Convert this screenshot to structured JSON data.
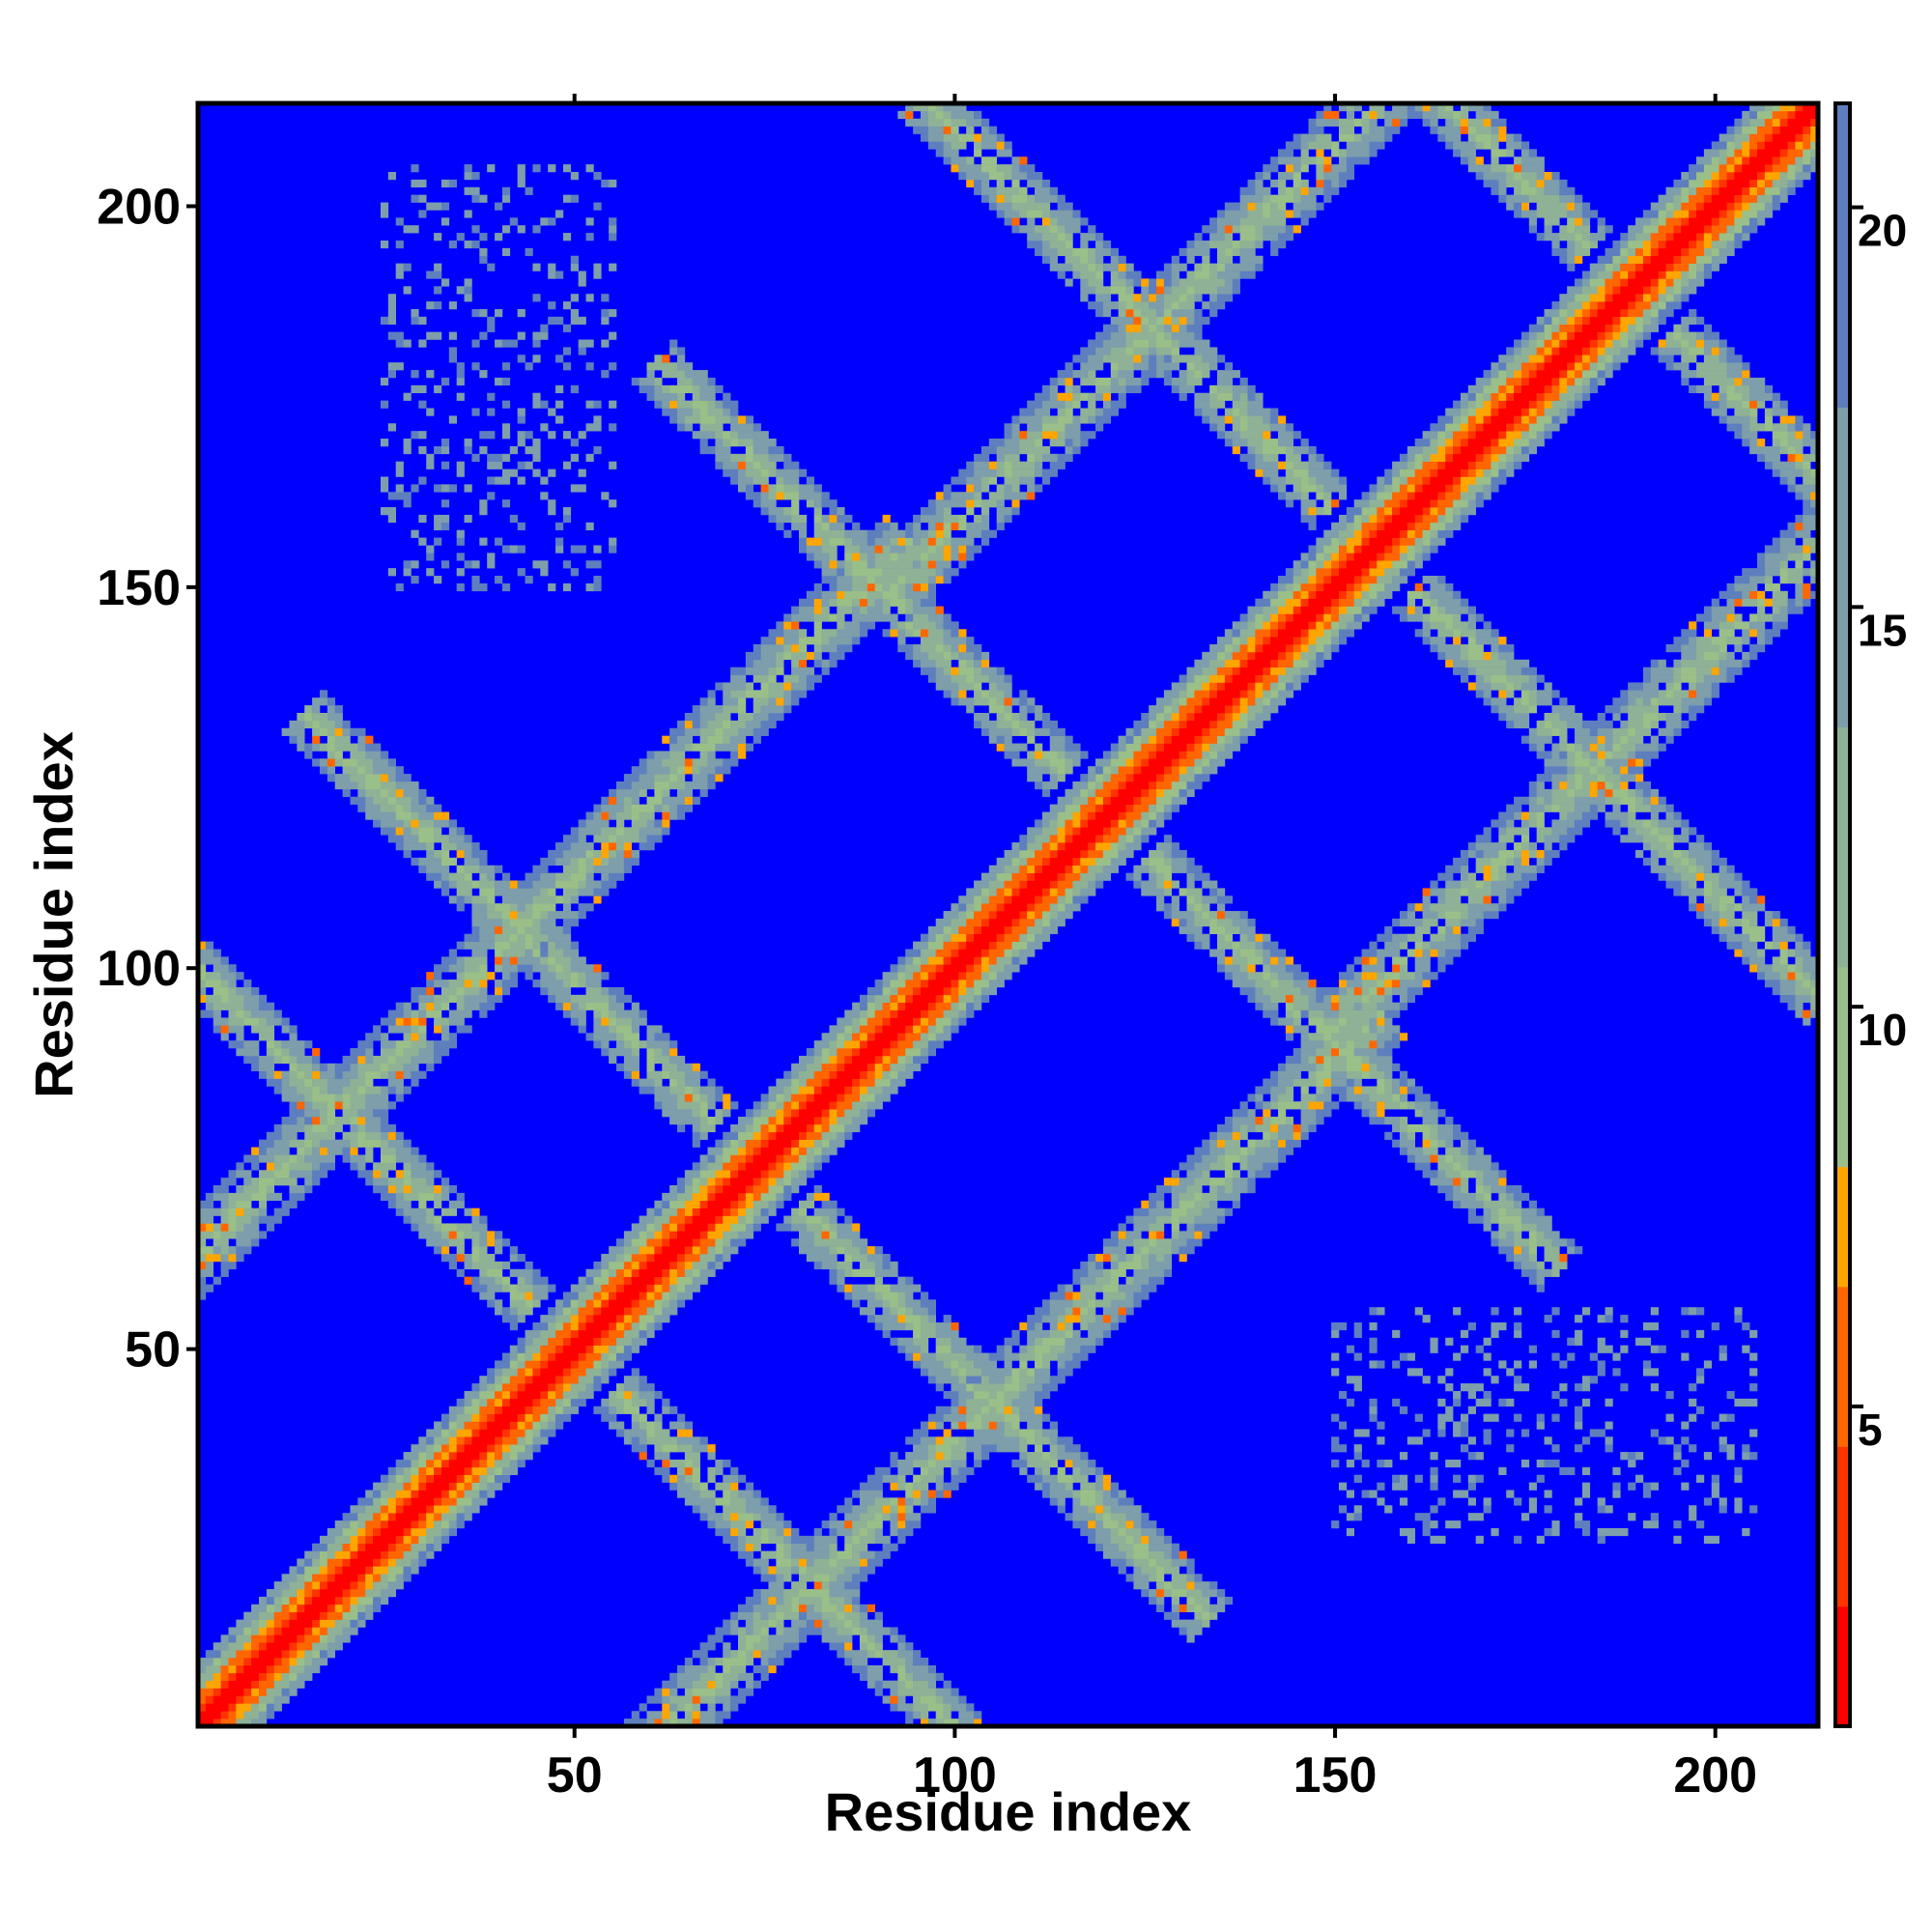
{
  "chart_data": {
    "type": "heatmap",
    "title": "",
    "xlabel": "Residue index",
    "ylabel": "Residue index",
    "n_residues": 213,
    "xlim": [
      1,
      213
    ],
    "ylim": [
      1,
      213
    ],
    "x_ticks": [
      50,
      100,
      150,
      200
    ],
    "y_ticks": [
      50,
      100,
      150,
      200
    ],
    "colorbar": {
      "range": [
        1,
        21.3
      ],
      "ticks": [
        5,
        10,
        15,
        20
      ],
      "colors": [
        {
          "from": 1,
          "to": 2.5,
          "color": "#ff0000"
        },
        {
          "from": 2.5,
          "to": 4.5,
          "color": "#ff3300"
        },
        {
          "from": 4.5,
          "to": 6.5,
          "color": "#ff6600"
        },
        {
          "from": 6.5,
          "to": 8.0,
          "color": "#ffa500"
        },
        {
          "from": 8.0,
          "to": 10.5,
          "color": "#9bbf88"
        },
        {
          "from": 10.5,
          "to": 13.5,
          "color": "#8fb196"
        },
        {
          "from": 13.5,
          "to": 17.5,
          "color": "#7d9eaa"
        },
        {
          "from": 17.5,
          "to": 21.3,
          "color": "#5d7fbd"
        }
      ],
      "background_color": "#0000ff"
    },
    "description_note": "Symmetric residue-residue distance map: main diagonal band, anti-diagonal beta-strand pairing bands, and sparse off-diagonal patches"
  }
}
